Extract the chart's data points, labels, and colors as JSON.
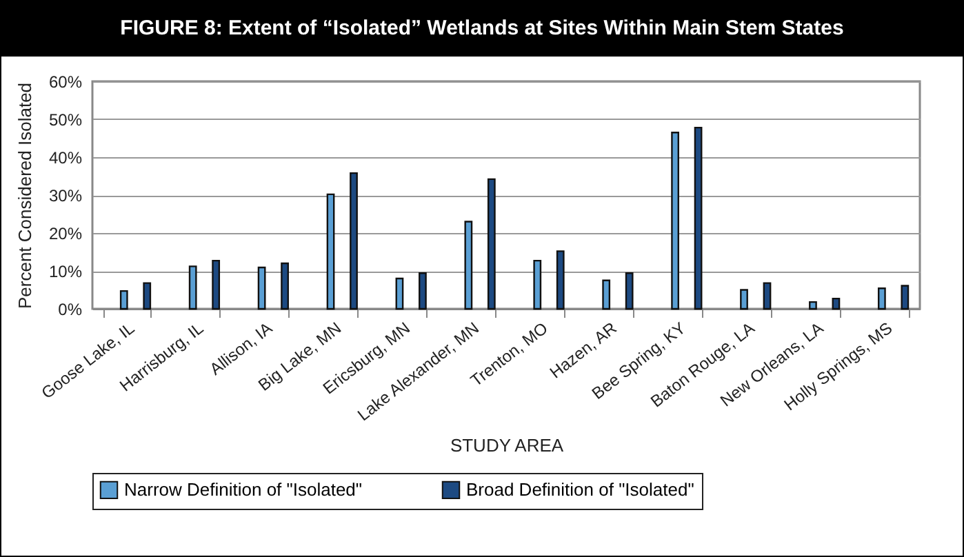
{
  "chart_data": {
    "type": "bar",
    "title": "FIGURE 8: Extent of “Isolated” Wetlands at Sites Within Main Stem States",
    "xlabel": "STUDY AREA",
    "ylabel": "Percent Considered Isolated",
    "categories": [
      "Goose Lake, IL",
      "Harrisburg, IL",
      "Allison, IA",
      "Big Lake, MN",
      "Ericsburg, MN",
      "Lake Alexander, MN",
      "Trenton, MO",
      "Hazen, AR",
      "Bee Spring, KY",
      "Baton Rouge, LA",
      "New Orleans, LA",
      "Holly Springs, MS"
    ],
    "series": [
      {
        "name": "Narrow Definition of \"Isolated\"",
        "color": "#5a9fd4",
        "values": [
          4.7,
          11.2,
          10.9,
          30.2,
          8.0,
          23.0,
          12.7,
          7.5,
          46.5,
          5.0,
          1.8,
          5.4
        ]
      },
      {
        "name": "Broad Definition of \"Isolated\"",
        "color": "#1d4a82",
        "values": [
          6.8,
          12.7,
          12.0,
          35.8,
          9.4,
          34.2,
          15.2,
          9.4,
          47.8,
          6.8,
          2.7,
          6.1
        ]
      }
    ],
    "ylim": [
      0,
      60
    ],
    "yticks": [
      {
        "value": 0,
        "label": "0%"
      },
      {
        "value": 10,
        "label": "10%"
      },
      {
        "value": 20,
        "label": "20%"
      },
      {
        "value": 30,
        "label": "30%"
      },
      {
        "value": 40,
        "label": "40%"
      },
      {
        "value": 50,
        "label": "50%"
      },
      {
        "value": 60,
        "label": "60%"
      }
    ],
    "grid": "y",
    "legend": "bottom"
  }
}
